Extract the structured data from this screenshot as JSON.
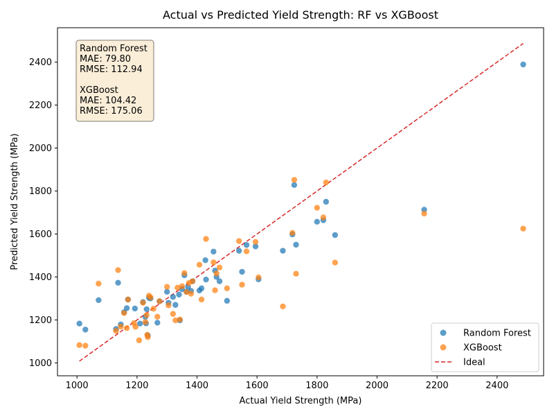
{
  "chart_data": {
    "type": "scatter",
    "title": "Actual vs Predicted Yield Strength: RF vs XGBoost",
    "xlabel": "Actual Yield Strength (MPa)",
    "ylabel": "Predicted Yield Strength (MPa)",
    "xlim": [
      935,
      2555
    ],
    "ylim": [
      940,
      2560
    ],
    "xticks": [
      1000,
      1200,
      1400,
      1600,
      1800,
      2000,
      2200,
      2400
    ],
    "yticks": [
      1000,
      1200,
      1400,
      1600,
      1800,
      2000,
      2200,
      2400
    ],
    "legend_position": "lower-right",
    "annotation": {
      "lines": [
        "Random Forest",
        "MAE: 79.80",
        "RMSE: 112.94",
        "",
        "XGBoost",
        "MAE: 104.42",
        "RMSE: 175.06"
      ]
    },
    "series": [
      {
        "name": "Random Forest",
        "color": "#1f77b4",
        "x": [
          1008,
          1028,
          1072,
          1130,
          1137,
          1146,
          1157,
          1166,
          1170,
          1193,
          1210,
          1220,
          1228,
          1230,
          1232,
          1236,
          1240,
          1245,
          1268,
          1275,
          1300,
          1305,
          1320,
          1328,
          1340,
          1343,
          1350,
          1358,
          1365,
          1370,
          1380,
          1385,
          1408,
          1415,
          1428,
          1430,
          1455,
          1460,
          1465,
          1475,
          1500,
          1540,
          1550,
          1565,
          1595,
          1605,
          1686,
          1718,
          1724,
          1730,
          1800,
          1821,
          1830,
          1860,
          2157,
          2487
        ],
        "y": [
          1183,
          1155,
          1292,
          1158,
          1373,
          1179,
          1236,
          1255,
          1295,
          1253,
          1183,
          1283,
          1214,
          1184,
          1250,
          1128,
          1303,
          1300,
          1187,
          1287,
          1331,
          1280,
          1307,
          1270,
          1318,
          1198,
          1343,
          1408,
          1331,
          1353,
          1335,
          1380,
          1337,
          1347,
          1478,
          1388,
          1518,
          1430,
          1400,
          1380,
          1289,
          1522,
          1424,
          1549,
          1542,
          1389,
          1522,
          1598,
          1828,
          1550,
          1657,
          1664,
          1750,
          1595,
          1713,
          2389
        ]
      },
      {
        "name": "XGBoost",
        "color": "#ff7f0e",
        "x": [
          1008,
          1028,
          1072,
          1130,
          1137,
          1146,
          1157,
          1166,
          1170,
          1190,
          1195,
          1207,
          1220,
          1228,
          1232,
          1234,
          1236,
          1240,
          1245,
          1255,
          1268,
          1275,
          1300,
          1305,
          1320,
          1328,
          1335,
          1343,
          1350,
          1358,
          1365,
          1373,
          1380,
          1385,
          1408,
          1415,
          1430,
          1455,
          1460,
          1465,
          1475,
          1500,
          1540,
          1550,
          1565,
          1595,
          1605,
          1686,
          1718,
          1724,
          1800,
          1821,
          1830,
          1860,
          1730,
          2157,
          2487
        ],
        "y": [
          1083,
          1080,
          1369,
          1149,
          1432,
          1169,
          1232,
          1162,
          1295,
          1185,
          1168,
          1105,
          1280,
          1190,
          1222,
          1131,
          1120,
          1313,
          1305,
          1252,
          1215,
          1287,
          1354,
          1268,
          1228,
          1198,
          1350,
          1202,
          1357,
          1418,
          1330,
          1372,
          1322,
          1380,
          1457,
          1295,
          1577,
          1468,
          1338,
          1416,
          1444,
          1347,
          1567,
          1364,
          1519,
          1563,
          1398,
          1263,
          1605,
          1852,
          1722,
          1677,
          1840,
          1467,
          1415,
          1695,
          1625
        ]
      }
    ],
    "ideal_line": {
      "name": "Ideal",
      "color": "#d62728",
      "x": [
        1008,
        2487
      ],
      "y": [
        1008,
        2487
      ]
    }
  }
}
